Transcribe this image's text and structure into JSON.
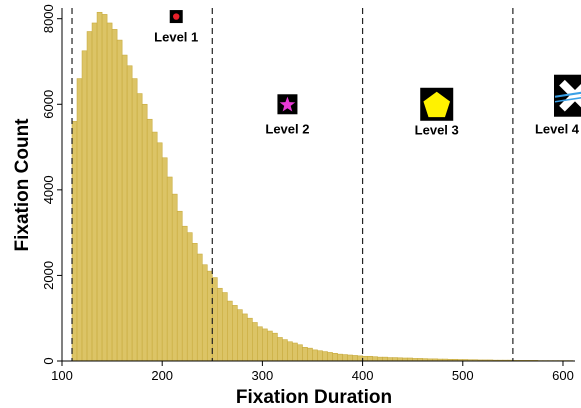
{
  "chart_data": {
    "type": "bar",
    "title": "",
    "xlabel": "Fixation Duration",
    "ylabel": "Fixation Count",
    "xlim": [
      100,
      612
    ],
    "ylim": [
      0,
      8250
    ],
    "xticks": [
      "100",
      "200",
      "300",
      "400",
      "500",
      "600"
    ],
    "yticks": [
      "0",
      "2000",
      "4000",
      "6000",
      "8000"
    ],
    "bar_color": "#dcc466",
    "bar_edge_color": "#c8ab3e",
    "bin_start": 110,
    "bin_width": 5,
    "values": [
      5600,
      6600,
      7250,
      7700,
      7900,
      8150,
      8100,
      7900,
      7750,
      7500,
      7150,
      6900,
      6600,
      6250,
      6000,
      5650,
      5350,
      5100,
      4750,
      4300,
      3900,
      3500,
      3150,
      3000,
      2750,
      2500,
      2250,
      2100,
      1950,
      1700,
      1600,
      1400,
      1300,
      1200,
      1100,
      1000,
      900,
      800,
      750,
      700,
      650,
      550,
      500,
      450,
      420,
      380,
      320,
      300,
      260,
      240,
      220,
      200,
      180,
      160,
      150,
      140,
      130,
      120,
      110,
      110,
      100,
      90,
      90,
      80,
      80,
      75,
      70,
      70,
      60,
      60,
      55,
      50,
      50,
      45,
      45,
      40,
      40,
      35,
      35,
      30,
      30,
      25,
      25,
      25,
      20,
      20,
      20,
      20,
      15,
      15,
      15,
      15,
      15,
      10,
      10,
      10,
      10,
      10,
      10,
      10
    ],
    "dashed_lines": [
      110,
      250,
      400,
      550
    ],
    "levels": [
      {
        "label": "Level 1",
        "icon": "red-dot-icon",
        "x": 214,
        "y": 8050
      },
      {
        "label": "Level 2",
        "icon": "magenta-star-icon",
        "x": 325,
        "y": 6000
      },
      {
        "label": "Level 3",
        "icon": "yellow-pentagon-icon",
        "x": 474,
        "y": 6000
      },
      {
        "label": "Level 4",
        "icon": "white-x-icon",
        "x": 612,
        "y": 6200
      }
    ]
  }
}
